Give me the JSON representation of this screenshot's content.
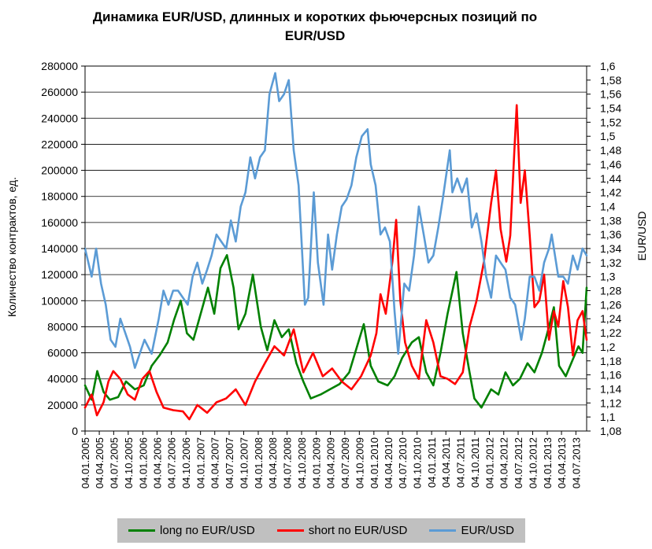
{
  "chart_data": {
    "type": "line",
    "title": "Динамика EUR/USD, длинных и коротких фьючерсных позиций по EUR/USD",
    "ylabel_left": "Количество контрактов, ед.",
    "ylabel_right": "EUR/USD",
    "ylim_left": [
      0,
      280000
    ],
    "ylim_right": [
      1.08,
      1.6
    ],
    "yticks_left": [
      "0",
      "20000",
      "40000",
      "60000",
      "80000",
      "100000",
      "120000",
      "140000",
      "160000",
      "180000",
      "200000",
      "220000",
      "240000",
      "260000",
      "280000"
    ],
    "yticks_right": [
      "1,08",
      "1,1",
      "1,12",
      "1,14",
      "1,16",
      "1,18",
      "1,2",
      "1,22",
      "1,24",
      "1,26",
      "1,28",
      "1,3",
      "1,32",
      "1,34",
      "1,36",
      "1,38",
      "1,4",
      "1,42",
      "1,44",
      "1,46",
      "1,48",
      "1,5",
      "1,52",
      "1,54",
      "1,56",
      "1,58",
      "1,6"
    ],
    "x_range": [
      "2005-01-04",
      "2013-09-10"
    ],
    "x_tick_labels": [
      "04.01.2005",
      "04.04.2005",
      "04.07.2005",
      "04.10.2005",
      "04.01.2006",
      "04.04.2006",
      "04.07.2006",
      "04.10.2006",
      "04.01.2007",
      "04.04.2007",
      "04.07.2007",
      "04.10.2007",
      "04.01.2008",
      "04.04.2008",
      "04.07.2008",
      "04.10.2008",
      "04.01.2009",
      "04.04.2009",
      "04.07.2009",
      "04.10.2009",
      "04.01.2010",
      "04.04.2010",
      "04.07.2010",
      "04.10.2010",
      "04.01.2011",
      "04.04.2011",
      "04.07.2011",
      "04.10.2011",
      "04.01.2012",
      "04.04.2012",
      "04.07.2012",
      "04.10.2012",
      "04.01.2013",
      "04.04.2013",
      "04.07.2013"
    ],
    "grid": true,
    "legend_position": "bottom",
    "series": [
      {
        "name": "long по EUR/USD",
        "color": "#008000",
        "axis": "left",
        "points": [
          [
            "2005-01-04",
            35000
          ],
          [
            "2005-02-15",
            24000
          ],
          [
            "2005-03-22",
            46000
          ],
          [
            "2005-05-01",
            30000
          ],
          [
            "2005-06-10",
            24000
          ],
          [
            "2005-08-01",
            26000
          ],
          [
            "2005-09-20",
            38000
          ],
          [
            "2005-11-15",
            32000
          ],
          [
            "2006-01-10",
            35000
          ],
          [
            "2006-03-01",
            50000
          ],
          [
            "2006-04-20",
            58000
          ],
          [
            "2006-06-10",
            68000
          ],
          [
            "2006-07-20",
            85000
          ],
          [
            "2006-09-01",
            100000
          ],
          [
            "2006-10-10",
            75000
          ],
          [
            "2006-11-20",
            70000
          ],
          [
            "2007-01-10",
            92000
          ],
          [
            "2007-02-20",
            110000
          ],
          [
            "2007-04-01",
            90000
          ],
          [
            "2007-05-10",
            125000
          ],
          [
            "2007-06-20",
            135000
          ],
          [
            "2007-08-01",
            110000
          ],
          [
            "2007-09-01",
            78000
          ],
          [
            "2007-10-15",
            90000
          ],
          [
            "2007-12-01",
            120000
          ],
          [
            "2008-01-20",
            80000
          ],
          [
            "2008-03-01",
            62000
          ],
          [
            "2008-04-15",
            85000
          ],
          [
            "2008-06-01",
            72000
          ],
          [
            "2008-07-15",
            78000
          ],
          [
            "2008-09-01",
            52000
          ],
          [
            "2008-10-15",
            38000
          ],
          [
            "2008-12-01",
            25000
          ],
          [
            "2009-02-01",
            28000
          ],
          [
            "2009-04-01",
            32000
          ],
          [
            "2009-06-01",
            36000
          ],
          [
            "2009-08-01",
            45000
          ],
          [
            "2009-09-20",
            65000
          ],
          [
            "2009-11-01",
            82000
          ],
          [
            "2009-12-15",
            50000
          ],
          [
            "2010-02-01",
            38000
          ],
          [
            "2010-04-01",
            35000
          ],
          [
            "2010-05-15",
            42000
          ],
          [
            "2010-07-01",
            56000
          ],
          [
            "2010-09-01",
            68000
          ],
          [
            "2010-10-15",
            72000
          ],
          [
            "2010-12-01",
            45000
          ],
          [
            "2011-01-15",
            35000
          ],
          [
            "2011-03-01",
            60000
          ],
          [
            "2011-04-15",
            90000
          ],
          [
            "2011-05-20",
            110000
          ],
          [
            "2011-06-10",
            122000
          ],
          [
            "2011-07-20",
            75000
          ],
          [
            "2011-09-01",
            45000
          ],
          [
            "2011-10-01",
            25000
          ],
          [
            "2011-11-15",
            18000
          ],
          [
            "2012-01-15",
            32000
          ],
          [
            "2012-03-01",
            28000
          ],
          [
            "2012-04-15",
            45000
          ],
          [
            "2012-06-01",
            35000
          ],
          [
            "2012-07-15",
            40000
          ],
          [
            "2012-09-01",
            52000
          ],
          [
            "2012-10-15",
            45000
          ],
          [
            "2012-12-01",
            60000
          ],
          [
            "2013-01-15",
            80000
          ],
          [
            "2013-02-15",
            95000
          ],
          [
            "2013-03-20",
            50000
          ],
          [
            "2013-05-01",
            42000
          ],
          [
            "2013-06-15",
            55000
          ],
          [
            "2013-07-20",
            65000
          ],
          [
            "2013-08-15",
            60000
          ],
          [
            "2013-09-10",
            110000
          ]
        ]
      },
      {
        "name": "short по  EUR/USD",
        "color": "#ff0000",
        "axis": "left",
        "points": [
          [
            "2005-01-04",
            18000
          ],
          [
            "2005-02-15",
            28000
          ],
          [
            "2005-03-20",
            12000
          ],
          [
            "2005-05-01",
            22000
          ],
          [
            "2005-06-01",
            38000
          ],
          [
            "2005-07-01",
            46000
          ],
          [
            "2005-08-15",
            40000
          ],
          [
            "2005-10-01",
            28000
          ],
          [
            "2005-11-15",
            24000
          ],
          [
            "2006-01-01",
            40000
          ],
          [
            "2006-02-15",
            46000
          ],
          [
            "2006-04-01",
            30000
          ],
          [
            "2006-05-15",
            18000
          ],
          [
            "2006-07-15",
            16000
          ],
          [
            "2006-09-15",
            15000
          ],
          [
            "2006-10-25",
            9000
          ],
          [
            "2006-12-15",
            20000
          ],
          [
            "2007-02-15",
            14000
          ],
          [
            "2007-04-15",
            22000
          ],
          [
            "2007-06-15",
            25000
          ],
          [
            "2007-08-15",
            32000
          ],
          [
            "2007-10-15",
            20000
          ],
          [
            "2007-12-15",
            38000
          ],
          [
            "2008-02-15",
            52000
          ],
          [
            "2008-04-15",
            65000
          ],
          [
            "2008-06-15",
            58000
          ],
          [
            "2008-08-15",
            78000
          ],
          [
            "2008-10-15",
            45000
          ],
          [
            "2008-12-15",
            60000
          ],
          [
            "2009-02-15",
            42000
          ],
          [
            "2009-04-15",
            48000
          ],
          [
            "2009-06-15",
            38000
          ],
          [
            "2009-08-15",
            32000
          ],
          [
            "2009-10-15",
            42000
          ],
          [
            "2009-12-15",
            58000
          ],
          [
            "2010-01-20",
            75000
          ],
          [
            "2010-02-15",
            105000
          ],
          [
            "2010-03-20",
            90000
          ],
          [
            "2010-05-01",
            130000
          ],
          [
            "2010-05-25",
            162000
          ],
          [
            "2010-06-20",
            100000
          ],
          [
            "2010-07-20",
            68000
          ],
          [
            "2010-09-01",
            50000
          ],
          [
            "2010-10-15",
            40000
          ],
          [
            "2010-12-01",
            85000
          ],
          [
            "2011-01-15",
            68000
          ],
          [
            "2011-03-01",
            42000
          ],
          [
            "2011-04-15",
            40000
          ],
          [
            "2011-06-01",
            36000
          ],
          [
            "2011-07-20",
            45000
          ],
          [
            "2011-09-01",
            80000
          ],
          [
            "2011-10-15",
            100000
          ],
          [
            "2011-12-01",
            130000
          ],
          [
            "2012-01-15",
            175000
          ],
          [
            "2012-02-15",
            200000
          ],
          [
            "2012-03-15",
            155000
          ],
          [
            "2012-04-20",
            130000
          ],
          [
            "2012-05-15",
            150000
          ],
          [
            "2012-06-10",
            215000
          ],
          [
            "2012-06-25",
            250000
          ],
          [
            "2012-07-20",
            175000
          ],
          [
            "2012-08-15",
            200000
          ],
          [
            "2012-09-15",
            150000
          ],
          [
            "2012-10-15",
            95000
          ],
          [
            "2012-11-15",
            100000
          ],
          [
            "2012-12-15",
            120000
          ],
          [
            "2013-01-15",
            70000
          ],
          [
            "2013-02-15",
            92000
          ],
          [
            "2013-03-15",
            80000
          ],
          [
            "2013-04-15",
            115000
          ],
          [
            "2013-05-15",
            95000
          ],
          [
            "2013-06-15",
            58000
          ],
          [
            "2013-07-15",
            85000
          ],
          [
            "2013-08-15",
            92000
          ],
          [
            "2013-09-10",
            70000
          ]
        ]
      },
      {
        "name": "EUR/USD",
        "color": "#5b9bd5",
        "axis": "right",
        "points": [
          [
            "2005-01-04",
            1.34
          ],
          [
            "2005-02-15",
            1.3
          ],
          [
            "2005-03-15",
            1.34
          ],
          [
            "2005-04-15",
            1.29
          ],
          [
            "2005-05-15",
            1.26
          ],
          [
            "2005-06-15",
            1.21
          ],
          [
            "2005-07-15",
            1.2
          ],
          [
            "2005-08-15",
            1.24
          ],
          [
            "2005-09-15",
            1.22
          ],
          [
            "2005-10-15",
            1.2
          ],
          [
            "2005-11-15",
            1.17
          ],
          [
            "2006-01-15",
            1.21
          ],
          [
            "2006-03-01",
            1.19
          ],
          [
            "2006-04-15",
            1.24
          ],
          [
            "2006-05-15",
            1.28
          ],
          [
            "2006-06-15",
            1.26
          ],
          [
            "2006-07-15",
            1.28
          ],
          [
            "2006-08-15",
            1.28
          ],
          [
            "2006-09-15",
            1.27
          ],
          [
            "2006-10-15",
            1.26
          ],
          [
            "2006-11-15",
            1.3
          ],
          [
            "2006-12-15",
            1.32
          ],
          [
            "2007-01-15",
            1.29
          ],
          [
            "2007-02-15",
            1.31
          ],
          [
            "2007-03-15",
            1.33
          ],
          [
            "2007-04-15",
            1.36
          ],
          [
            "2007-05-15",
            1.35
          ],
          [
            "2007-06-15",
            1.34
          ],
          [
            "2007-07-15",
            1.38
          ],
          [
            "2007-08-15",
            1.35
          ],
          [
            "2007-09-15",
            1.4
          ],
          [
            "2007-10-15",
            1.42
          ],
          [
            "2007-11-15",
            1.47
          ],
          [
            "2007-12-15",
            1.44
          ],
          [
            "2008-01-15",
            1.47
          ],
          [
            "2008-02-15",
            1.48
          ],
          [
            "2008-03-15",
            1.56
          ],
          [
            "2008-04-20",
            1.59
          ],
          [
            "2008-05-15",
            1.55
          ],
          [
            "2008-06-15",
            1.56
          ],
          [
            "2008-07-15",
            1.58
          ],
          [
            "2008-08-15",
            1.48
          ],
          [
            "2008-09-15",
            1.43
          ],
          [
            "2008-10-25",
            1.26
          ],
          [
            "2008-11-15",
            1.27
          ],
          [
            "2008-12-20",
            1.42
          ],
          [
            "2009-01-15",
            1.32
          ],
          [
            "2009-02-20",
            1.26
          ],
          [
            "2009-03-20",
            1.36
          ],
          [
            "2009-04-15",
            1.31
          ],
          [
            "2009-05-15",
            1.36
          ],
          [
            "2009-06-15",
            1.4
          ],
          [
            "2009-07-15",
            1.41
          ],
          [
            "2009-08-15",
            1.43
          ],
          [
            "2009-09-15",
            1.47
          ],
          [
            "2009-10-20",
            1.5
          ],
          [
            "2009-11-25",
            1.51
          ],
          [
            "2009-12-15",
            1.46
          ],
          [
            "2010-01-15",
            1.43
          ],
          [
            "2010-02-15",
            1.36
          ],
          [
            "2010-03-15",
            1.37
          ],
          [
            "2010-04-15",
            1.35
          ],
          [
            "2010-05-15",
            1.25
          ],
          [
            "2010-06-07",
            1.19
          ],
          [
            "2010-07-15",
            1.29
          ],
          [
            "2010-08-15",
            1.28
          ],
          [
            "2010-09-15",
            1.33
          ],
          [
            "2010-10-15",
            1.4
          ],
          [
            "2010-11-15",
            1.36
          ],
          [
            "2010-12-15",
            1.32
          ],
          [
            "2011-01-15",
            1.33
          ],
          [
            "2011-02-15",
            1.37
          ],
          [
            "2011-03-15",
            1.41
          ],
          [
            "2011-04-29",
            1.48
          ],
          [
            "2011-05-15",
            1.42
          ],
          [
            "2011-06-15",
            1.44
          ],
          [
            "2011-07-15",
            1.42
          ],
          [
            "2011-08-15",
            1.44
          ],
          [
            "2011-09-15",
            1.37
          ],
          [
            "2011-10-15",
            1.39
          ],
          [
            "2011-11-15",
            1.35
          ],
          [
            "2011-12-15",
            1.3
          ],
          [
            "2012-01-15",
            1.27
          ],
          [
            "2012-02-15",
            1.33
          ],
          [
            "2012-03-15",
            1.32
          ],
          [
            "2012-04-15",
            1.31
          ],
          [
            "2012-05-15",
            1.27
          ],
          [
            "2012-06-15",
            1.26
          ],
          [
            "2012-07-24",
            1.21
          ],
          [
            "2012-08-15",
            1.24
          ],
          [
            "2012-09-15",
            1.3
          ],
          [
            "2012-10-15",
            1.3
          ],
          [
            "2012-11-15",
            1.28
          ],
          [
            "2012-12-15",
            1.32
          ],
          [
            "2013-01-15",
            1.34
          ],
          [
            "2013-02-01",
            1.36
          ],
          [
            "2013-03-15",
            1.3
          ],
          [
            "2013-04-15",
            1.3
          ],
          [
            "2013-05-15",
            1.29
          ],
          [
            "2013-06-15",
            1.33
          ],
          [
            "2013-07-15",
            1.31
          ],
          [
            "2013-08-15",
            1.34
          ],
          [
            "2013-09-10",
            1.33
          ]
        ]
      }
    ]
  },
  "legend": {
    "items": [
      {
        "label": "long по EUR/USD",
        "color": "#008000"
      },
      {
        "label": "short по  EUR/USD",
        "color": "#ff0000"
      },
      {
        "label": "EUR/USD",
        "color": "#5b9bd5"
      }
    ]
  }
}
